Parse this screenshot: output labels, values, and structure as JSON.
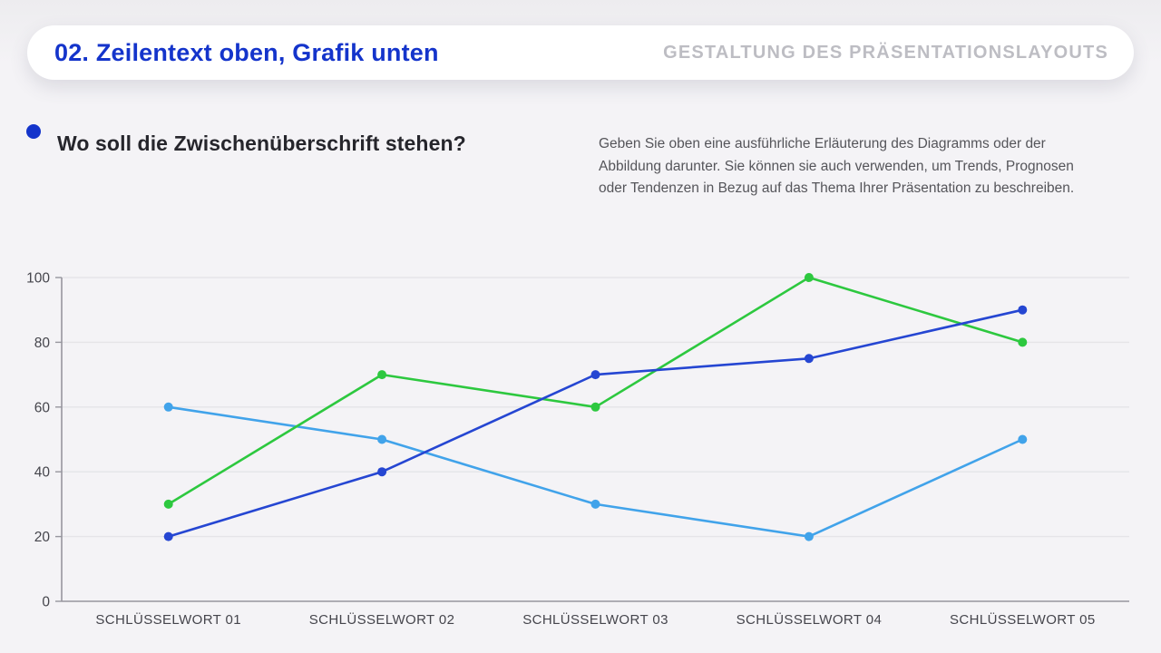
{
  "header": {
    "title": "02. Zeilentext oben, Grafik unten",
    "kicker": "GESTALTUNG DES PRÄSENTATIONSLAYOUTS"
  },
  "section": {
    "heading": "Wo soll die Zwischenüberschrift stehen?",
    "body_lines": [
      "Geben Sie oben eine ausführliche Erläuterung des Diagramms oder der",
      "Abbildung darunter. Sie können sie auch verwenden, um Trends, Prognosen",
      "oder Tendenzen in Bezug auf das Thema Ihrer Präsentation zu beschreiben."
    ]
  },
  "colors": {
    "accent_blue": "#1434cb",
    "kicker_gray": "#bdbdc3",
    "heading_text": "#26262c",
    "body_text": "#55555a",
    "background": "#f4f3f6",
    "grid_line": "#e5e4e8",
    "axis_line": "#97969e",
    "tick_text": "#45454c"
  },
  "chart_data": {
    "type": "line",
    "title": "",
    "xlabel": "",
    "ylabel": "",
    "categories": [
      "SCHLÜSSELWORT 01",
      "SCHLÜSSELWORT 02",
      "SCHLÜSSELWORT 03",
      "SCHLÜSSELWORT 04",
      "SCHLÜSSELWORT 05"
    ],
    "series": [
      {
        "name": "sky-blue-series",
        "color": "#41a3ea",
        "values": [
          60,
          50,
          30,
          20,
          50
        ]
      },
      {
        "name": "green-series",
        "color": "#2dc83f",
        "values": [
          30,
          70,
          60,
          100,
          80
        ]
      },
      {
        "name": "royal-blue-series",
        "color": "#2546d2",
        "values": [
          20,
          40,
          70,
          75,
          90
        ]
      }
    ],
    "ylim": [
      0,
      100
    ],
    "yticks": [
      0,
      20,
      40,
      60,
      80,
      100
    ],
    "grid": true,
    "legend": "none",
    "point_markers": true
  }
}
